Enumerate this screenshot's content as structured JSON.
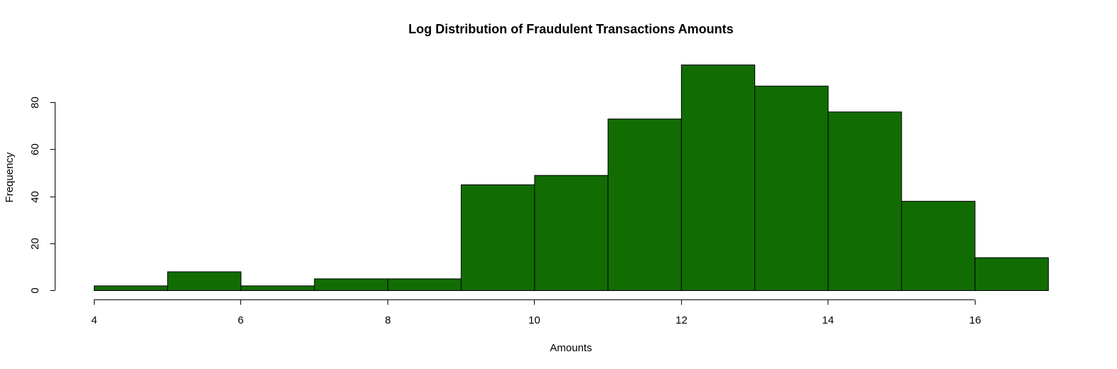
{
  "chart_data": {
    "type": "bar",
    "title": "Log Distribution of Fraudulent Transactions Amounts",
    "xlabel": "Amounts",
    "ylabel": "Frequency",
    "bin_edges": [
      4,
      5,
      6,
      7,
      8,
      9,
      10,
      11,
      12,
      13,
      14,
      15,
      16,
      17
    ],
    "values": [
      2,
      8,
      2,
      5,
      5,
      45,
      49,
      73,
      96,
      87,
      76,
      38,
      14
    ],
    "xlim": [
      4,
      17
    ],
    "ylim": [
      0,
      96
    ],
    "x_ticks": [
      4,
      6,
      8,
      10,
      12,
      14,
      16
    ],
    "y_ticks": [
      0,
      20,
      40,
      60,
      80
    ],
    "bar_color": "#116d02",
    "grid": false
  }
}
